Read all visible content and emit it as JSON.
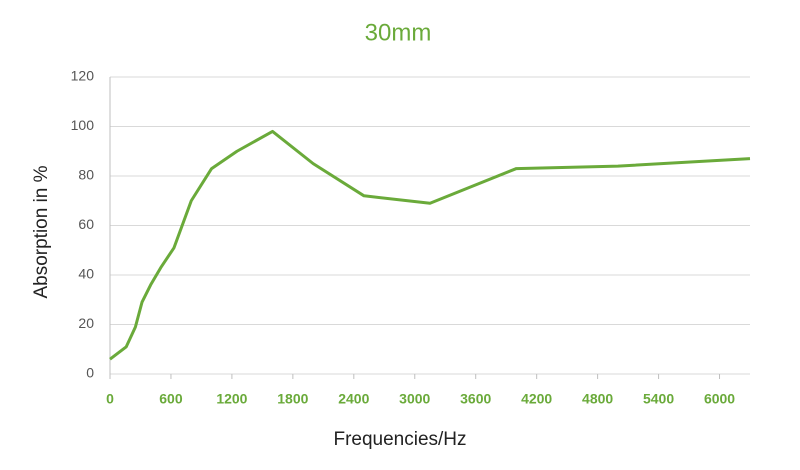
{
  "chart_data": {
    "type": "line",
    "title": "30mm",
    "x_label": "Frequencies/Hz",
    "y_label": "Absorption in %",
    "x": [
      0,
      160,
      250,
      315,
      400,
      500,
      630,
      800,
      1000,
      1250,
      1600,
      2000,
      2500,
      3150,
      4000,
      5000,
      6300
    ],
    "series": [
      {
        "name": "30mm",
        "color": "#6aaa3a",
        "values": [
          6,
          11,
          19,
          29,
          36,
          43,
          51,
          70,
          83,
          90,
          98,
          85,
          72,
          69,
          83,
          84,
          87
        ]
      }
    ],
    "xlim": [
      0,
      6300
    ],
    "xticks": [
      0,
      600,
      1200,
      1800,
      2400,
      3000,
      3600,
      4200,
      4800,
      5400,
      6000
    ],
    "ylim": [
      0,
      120
    ],
    "yticks": [
      0,
      20,
      40,
      60,
      80,
      100,
      120
    ],
    "grid": true
  }
}
